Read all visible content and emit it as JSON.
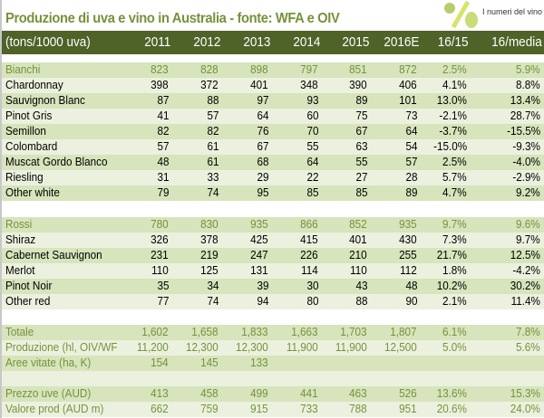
{
  "title": "Produzione di uva e vino in Australia - fonte: WFA e OIV",
  "logo": {
    "text": "I numeri del vino"
  },
  "header": {
    "label": "(tons/1000 uva)",
    "columns": [
      "2011",
      "2012",
      "2013",
      "2014",
      "2015",
      "2016E",
      "16/15",
      "16/media"
    ]
  },
  "colors": {
    "header_bg": "#4f6228",
    "title": "#76923c",
    "row_dark": "#d7e4bc",
    "row_light": "#ebf1de"
  },
  "rows": [
    {
      "label": "Bianchi",
      "values": [
        "823",
        "828",
        "898",
        "797",
        "851",
        "872",
        "2.5%",
        "5.9%"
      ],
      "group": true
    },
    {
      "label": "Chardonnay",
      "values": [
        "398",
        "372",
        "401",
        "348",
        "390",
        "406",
        "4.1%",
        "8.8%"
      ]
    },
    {
      "label": "Sauvignon Blanc",
      "values": [
        "87",
        "88",
        "97",
        "93",
        "89",
        "101",
        "13.0%",
        "13.4%"
      ]
    },
    {
      "label": "Pinot Gris",
      "values": [
        "41",
        "57",
        "64",
        "60",
        "75",
        "73",
        "-2.1%",
        "28.7%"
      ]
    },
    {
      "label": "Semillon",
      "values": [
        "82",
        "82",
        "76",
        "70",
        "67",
        "64",
        "-3.7%",
        "-15.5%"
      ]
    },
    {
      "label": "Colombard",
      "values": [
        "57",
        "61",
        "67",
        "55",
        "63",
        "54",
        "-15.0%",
        "-9.3%"
      ]
    },
    {
      "label": "Muscat Gordo Blanco",
      "values": [
        "48",
        "61",
        "68",
        "64",
        "55",
        "57",
        "2.5%",
        "-4.0%"
      ]
    },
    {
      "label": "Riesling",
      "values": [
        "31",
        "33",
        "29",
        "22",
        "27",
        "28",
        "5.7%",
        "-2.9%"
      ]
    },
    {
      "label": "Other white",
      "values": [
        "79",
        "74",
        "95",
        "85",
        "85",
        "89",
        "4.7%",
        "9.2%"
      ]
    },
    {
      "label": "Rossi",
      "values": [
        "780",
        "830",
        "935",
        "866",
        "852",
        "935",
        "9.7%",
        "9.6%"
      ],
      "group": true
    },
    {
      "label": "Shiraz",
      "values": [
        "326",
        "378",
        "425",
        "415",
        "401",
        "430",
        "7.3%",
        "9.7%"
      ]
    },
    {
      "label": "Cabernet Sauvignon",
      "values": [
        "231",
        "219",
        "247",
        "226",
        "210",
        "255",
        "21.7%",
        "12.5%"
      ]
    },
    {
      "label": "Merlot",
      "values": [
        "110",
        "125",
        "131",
        "114",
        "110",
        "112",
        "1.8%",
        "-4.2%"
      ]
    },
    {
      "label": "Pinot Noir",
      "values": [
        "35",
        "34",
        "39",
        "30",
        "43",
        "48",
        "10.2%",
        "30.2%"
      ]
    },
    {
      "label": "Other red",
      "values": [
        "77",
        "74",
        "94",
        "80",
        "88",
        "90",
        "2.1%",
        "11.4%"
      ]
    },
    {
      "label": "Totale",
      "values": [
        "1,602",
        "1,658",
        "1,833",
        "1,663",
        "1,703",
        "1,807",
        "6.1%",
        "7.8%"
      ],
      "group": true
    },
    {
      "label": "Produzione (hl, OIV/WF",
      "values": [
        "11,200",
        "12,300",
        "12,300",
        "11,900",
        "11,900",
        "12,500",
        "5.0%",
        "5.6%"
      ],
      "group": true
    },
    {
      "label": "Aree vitate (ha, K)",
      "values": [
        "154",
        "145",
        "133",
        "",
        "",
        "",
        "",
        ""
      ],
      "group": true
    },
    {
      "label": "",
      "values": [
        "",
        "",
        "",
        "",
        "",
        "",
        "",
        ""
      ],
      "group": true
    },
    {
      "label": "Prezzo uve (AUD)",
      "values": [
        "413",
        "458",
        "499",
        "441",
        "463",
        "526",
        "13.6%",
        "15.3%"
      ],
      "group": true
    },
    {
      "label": "Valore prod (AUD m)",
      "values": [
        "662",
        "759",
        "915",
        "733",
        "788",
        "951",
        "20.6%",
        "24.0%"
      ],
      "group": true
    }
  ]
}
